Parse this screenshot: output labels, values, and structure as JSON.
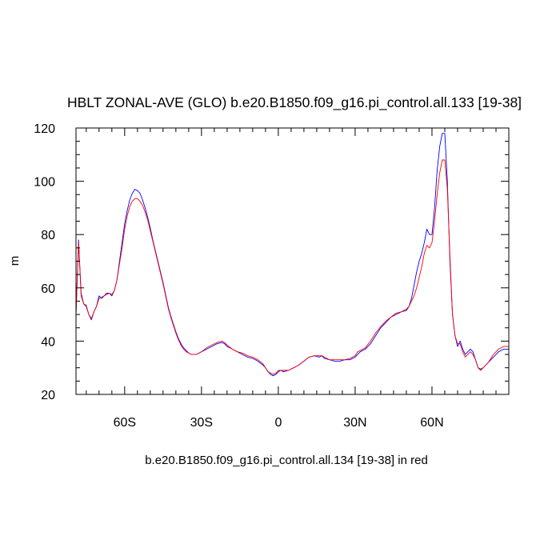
{
  "chart_data": {
    "type": "line",
    "title": "HBLT ZONAL-AVE (GLO) b.e20.B1850.f09_g16.pi_control.all.133 [19-38]",
    "xlabel": "",
    "ylabel": "m",
    "caption": "b.e20.B1850.f09_g16.pi_control.all.134 [19-38] in red",
    "xlim": [
      -79,
      90
    ],
    "ylim": [
      20,
      120
    ],
    "grid": false,
    "x_ticks": [
      {
        "value": -60,
        "label": "60S"
      },
      {
        "value": -30,
        "label": "30S"
      },
      {
        "value": 0,
        "label": "0"
      },
      {
        "value": 30,
        "label": "30N"
      },
      {
        "value": 60,
        "label": "60N"
      }
    ],
    "y_ticks": [
      {
        "value": 20,
        "label": "20"
      },
      {
        "value": 40,
        "label": "40"
      },
      {
        "value": 60,
        "label": "60"
      },
      {
        "value": 80,
        "label": "80"
      },
      {
        "value": 100,
        "label": "100"
      },
      {
        "value": 120,
        "label": "120"
      }
    ],
    "series": [
      {
        "color": "#0000ff",
        "points": [
          [
            -79,
            50
          ],
          [
            -78,
            78
          ],
          [
            -77,
            58
          ],
          [
            -76,
            54
          ],
          [
            -75,
            53
          ],
          [
            -74,
            50
          ],
          [
            -73,
            48
          ],
          [
            -72,
            51
          ],
          [
            -71,
            53
          ],
          [
            -70,
            57
          ],
          [
            -69,
            56
          ],
          [
            -68,
            57
          ],
          [
            -67,
            58
          ],
          [
            -66,
            58
          ],
          [
            -65,
            57
          ],
          [
            -64,
            59
          ],
          [
            -63,
            63
          ],
          [
            -62,
            70
          ],
          [
            -61,
            77
          ],
          [
            -60,
            84
          ],
          [
            -59,
            89
          ],
          [
            -58,
            93
          ],
          [
            -57,
            95.5
          ],
          [
            -56,
            97
          ],
          [
            -55,
            96.5
          ],
          [
            -54,
            95.5
          ],
          [
            -53,
            93
          ],
          [
            -52,
            90
          ],
          [
            -51,
            86.5
          ],
          [
            -50,
            82.5
          ],
          [
            -49,
            78
          ],
          [
            -48,
            74
          ],
          [
            -47,
            70
          ],
          [
            -46,
            66
          ],
          [
            -45,
            62
          ],
          [
            -44,
            57.5
          ],
          [
            -43,
            53
          ],
          [
            -42,
            49.5
          ],
          [
            -41,
            46.5
          ],
          [
            -40,
            43.5
          ],
          [
            -39,
            41
          ],
          [
            -38,
            39
          ],
          [
            -37,
            37.5
          ],
          [
            -36,
            36.5
          ],
          [
            -35,
            35.5
          ],
          [
            -34,
            35
          ],
          [
            -33,
            35
          ],
          [
            -32,
            35
          ],
          [
            -31,
            35.5
          ],
          [
            -30,
            36
          ],
          [
            -28,
            37
          ],
          [
            -26,
            38
          ],
          [
            -24,
            39
          ],
          [
            -22,
            39.5
          ],
          [
            -21,
            39
          ],
          [
            -20,
            38
          ],
          [
            -18,
            37
          ],
          [
            -16,
            36
          ],
          [
            -14,
            35
          ],
          [
            -12,
            34
          ],
          [
            -10,
            33.5
          ],
          [
            -8,
            32.5
          ],
          [
            -6,
            31
          ],
          [
            -5,
            30
          ],
          [
            -4,
            28.5
          ],
          [
            -3,
            27.5
          ],
          [
            -2,
            27
          ],
          [
            -1,
            27.5
          ],
          [
            0,
            28.5
          ],
          [
            1,
            29
          ],
          [
            2,
            28.5
          ],
          [
            4,
            29
          ],
          [
            6,
            30
          ],
          [
            8,
            31
          ],
          [
            10,
            32.5
          ],
          [
            12,
            34
          ],
          [
            14,
            34.5
          ],
          [
            16,
            34
          ],
          [
            17,
            34.5
          ],
          [
            18,
            33.5
          ],
          [
            20,
            33
          ],
          [
            22,
            32.5
          ],
          [
            24,
            32.5
          ],
          [
            26,
            33
          ],
          [
            28,
            33
          ],
          [
            30,
            34
          ],
          [
            31,
            35
          ],
          [
            32,
            36
          ],
          [
            34,
            37
          ],
          [
            36,
            39
          ],
          [
            38,
            42
          ],
          [
            40,
            45
          ],
          [
            42,
            47
          ],
          [
            44,
            49
          ],
          [
            46,
            50
          ],
          [
            48,
            51
          ],
          [
            50,
            51.5
          ],
          [
            51,
            53
          ],
          [
            52,
            56
          ],
          [
            53,
            61
          ],
          [
            54,
            66
          ],
          [
            55,
            70
          ],
          [
            56,
            73
          ],
          [
            57,
            77
          ],
          [
            58,
            82
          ],
          [
            59,
            80
          ],
          [
            60,
            80
          ],
          [
            61,
            90
          ],
          [
            62,
            104
          ],
          [
            63,
            113
          ],
          [
            64,
            118
          ],
          [
            65,
            118
          ],
          [
            66,
            100
          ],
          [
            67,
            70
          ],
          [
            68,
            50
          ],
          [
            69,
            42
          ],
          [
            70,
            38
          ],
          [
            71,
            40
          ],
          [
            72,
            37
          ],
          [
            73,
            35
          ],
          [
            74,
            36
          ],
          [
            75,
            37
          ],
          [
            76,
            36
          ],
          [
            77,
            33
          ],
          [
            78,
            30
          ],
          [
            79,
            29.5
          ],
          [
            80,
            30
          ],
          [
            82,
            32
          ],
          [
            84,
            34
          ],
          [
            86,
            36
          ],
          [
            88,
            37
          ],
          [
            90,
            37
          ]
        ]
      },
      {
        "color": "#ff0000",
        "points": [
          [
            -79,
            50
          ],
          [
            -78,
            77
          ],
          [
            -77,
            57
          ],
          [
            -76,
            54
          ],
          [
            -75,
            53.5
          ],
          [
            -74,
            50
          ],
          [
            -73,
            48.5
          ],
          [
            -72,
            51
          ],
          [
            -71,
            53
          ],
          [
            -70,
            56
          ],
          [
            -69,
            56.5
          ],
          [
            -68,
            57
          ],
          [
            -67,
            57.5
          ],
          [
            -66,
            58
          ],
          [
            -65,
            57.5
          ],
          [
            -64,
            59
          ],
          [
            -63,
            63
          ],
          [
            -62,
            69
          ],
          [
            -61,
            75
          ],
          [
            -60,
            82
          ],
          [
            -59,
            87
          ],
          [
            -58,
            90.5
          ],
          [
            -57,
            92.5
          ],
          [
            -56,
            93.5
          ],
          [
            -55,
            93.5
          ],
          [
            -54,
            92.5
          ],
          [
            -53,
            91
          ],
          [
            -52,
            88.5
          ],
          [
            -51,
            85.5
          ],
          [
            -50,
            81.5
          ],
          [
            -49,
            77.5
          ],
          [
            -48,
            73.5
          ],
          [
            -47,
            69.5
          ],
          [
            -46,
            65.5
          ],
          [
            -45,
            61.5
          ],
          [
            -44,
            57
          ],
          [
            -43,
            52.5
          ],
          [
            -42,
            49
          ],
          [
            -41,
            46
          ],
          [
            -40,
            43
          ],
          [
            -39,
            40.5
          ],
          [
            -38,
            38.5
          ],
          [
            -37,
            37
          ],
          [
            -36,
            36
          ],
          [
            -35,
            35.5
          ],
          [
            -34,
            35
          ],
          [
            -33,
            35
          ],
          [
            -32,
            35
          ],
          [
            -31,
            35.5
          ],
          [
            -30,
            36
          ],
          [
            -28,
            37.5
          ],
          [
            -26,
            38.5
          ],
          [
            -24,
            39.5
          ],
          [
            -22,
            40
          ],
          [
            -21,
            39.5
          ],
          [
            -20,
            38.5
          ],
          [
            -18,
            37
          ],
          [
            -16,
            36
          ],
          [
            -14,
            35.5
          ],
          [
            -12,
            34.5
          ],
          [
            -10,
            34
          ],
          [
            -8,
            33
          ],
          [
            -6,
            31.5
          ],
          [
            -5,
            30
          ],
          [
            -4,
            28.5
          ],
          [
            -3,
            28
          ],
          [
            -2,
            27.5
          ],
          [
            -1,
            28
          ],
          [
            0,
            29
          ],
          [
            1,
            29
          ],
          [
            2,
            29
          ],
          [
            4,
            29
          ],
          [
            6,
            30
          ],
          [
            8,
            31
          ],
          [
            10,
            32.5
          ],
          [
            12,
            34
          ],
          [
            14,
            34.5
          ],
          [
            16,
            34.5
          ],
          [
            17,
            34.5
          ],
          [
            18,
            34
          ],
          [
            20,
            33
          ],
          [
            22,
            33
          ],
          [
            24,
            33
          ],
          [
            26,
            33
          ],
          [
            28,
            33.5
          ],
          [
            30,
            34.5
          ],
          [
            31,
            36
          ],
          [
            32,
            36.5
          ],
          [
            34,
            37.5
          ],
          [
            36,
            40
          ],
          [
            38,
            43
          ],
          [
            40,
            45.5
          ],
          [
            42,
            47.5
          ],
          [
            44,
            49
          ],
          [
            46,
            50.5
          ],
          [
            48,
            51
          ],
          [
            50,
            52
          ],
          [
            51,
            53
          ],
          [
            52,
            55
          ],
          [
            53,
            57
          ],
          [
            54,
            60
          ],
          [
            55,
            64
          ],
          [
            56,
            68
          ],
          [
            57,
            73
          ],
          [
            58,
            76
          ],
          [
            59,
            75
          ],
          [
            60,
            77
          ],
          [
            61,
            85
          ],
          [
            62,
            95
          ],
          [
            63,
            103
          ],
          [
            64,
            108
          ],
          [
            65,
            108
          ],
          [
            66,
            97
          ],
          [
            67,
            72
          ],
          [
            68,
            50
          ],
          [
            69,
            42
          ],
          [
            70,
            39
          ],
          [
            71,
            39
          ],
          [
            72,
            36
          ],
          [
            73,
            34
          ],
          [
            74,
            35
          ],
          [
            75,
            36
          ],
          [
            76,
            35
          ],
          [
            77,
            33
          ],
          [
            78,
            30
          ],
          [
            79,
            29
          ],
          [
            80,
            30
          ],
          [
            82,
            32
          ],
          [
            84,
            35
          ],
          [
            86,
            37
          ],
          [
            88,
            38
          ],
          [
            90,
            38
          ]
        ]
      }
    ]
  }
}
